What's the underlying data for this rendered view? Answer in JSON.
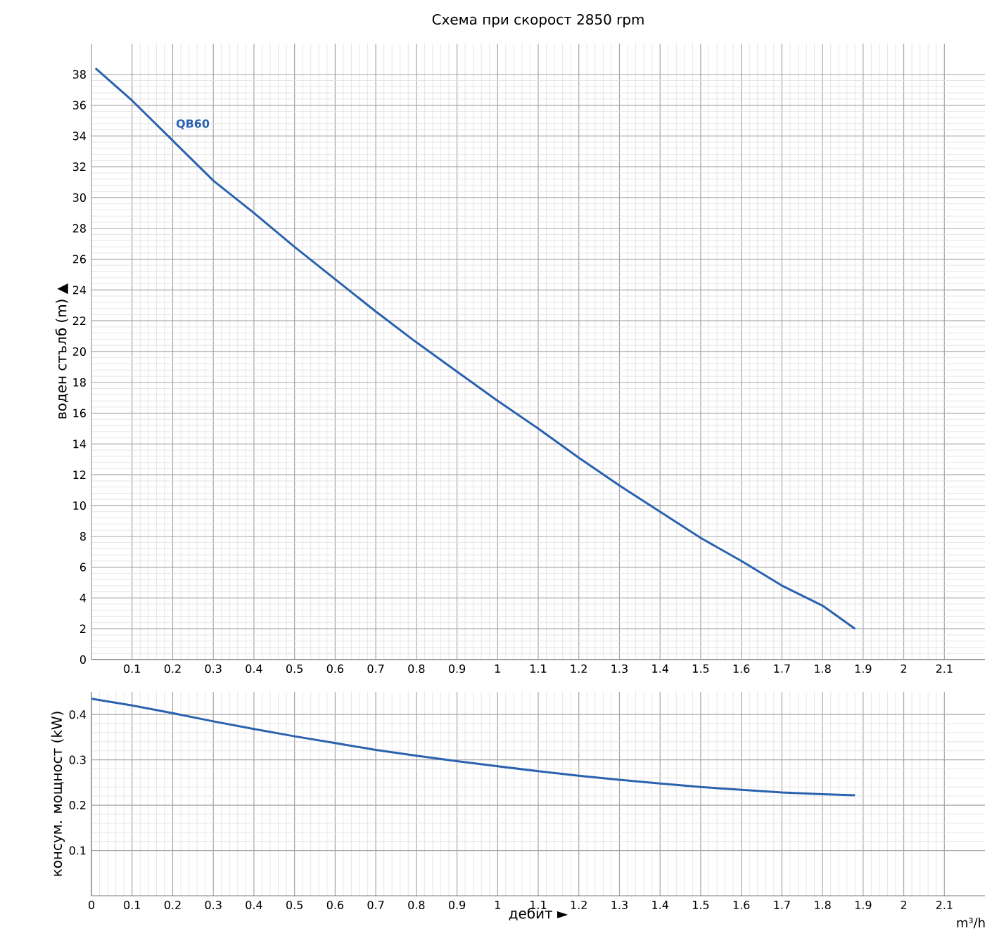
{
  "chart_data": [
    {
      "type": "line",
      "title": "Схема при скорост 2850 rpm",
      "ylabel": "воден стълб (m) ▲",
      "x": [
        0.01,
        0.1,
        0.2,
        0.3,
        0.4,
        0.5,
        0.6,
        0.7,
        0.8,
        0.9,
        1.0,
        1.1,
        1.2,
        1.3,
        1.4,
        1.5,
        1.6,
        1.7,
        1.8,
        1.88
      ],
      "series": [
        {
          "name": "QB60",
          "color": "#2a62b0",
          "values": [
            38.4,
            36.3,
            33.7,
            31.1,
            29.0,
            26.8,
            24.7,
            22.6,
            20.6,
            18.7,
            16.8,
            15.0,
            13.1,
            11.3,
            9.6,
            7.9,
            6.4,
            4.8,
            3.5,
            2.0
          ]
        }
      ],
      "xlim": [
        0,
        2.2
      ],
      "ylim": [
        0,
        40
      ],
      "xticks": [
        0.1,
        0.2,
        0.3,
        0.4,
        0.5,
        0.6,
        0.7,
        0.8,
        0.9,
        1,
        1.1,
        1.2,
        1.3,
        1.4,
        1.5,
        1.6,
        1.7,
        1.8,
        1.9,
        2,
        2.1
      ],
      "yticks": [
        0,
        2,
        4,
        6,
        8,
        10,
        12,
        14,
        16,
        18,
        20,
        22,
        24,
        26,
        28,
        30,
        32,
        34,
        36,
        38
      ],
      "grid": true
    },
    {
      "type": "line",
      "xlabel": "дебит ►",
      "ylabel": "консум. мощност (kW)",
      "annotations": [
        "m³/h"
      ],
      "x": [
        0,
        0.1,
        0.2,
        0.3,
        0.4,
        0.5,
        0.6,
        0.7,
        0.8,
        0.9,
        1.0,
        1.1,
        1.2,
        1.3,
        1.4,
        1.5,
        1.6,
        1.7,
        1.8,
        1.88
      ],
      "series": [
        {
          "color": "#2a62b0",
          "values": [
            0.435,
            0.42,
            0.403,
            0.385,
            0.368,
            0.352,
            0.337,
            0.322,
            0.309,
            0.297,
            0.286,
            0.275,
            0.265,
            0.256,
            0.248,
            0.24,
            0.234,
            0.228,
            0.224,
            0.222
          ]
        }
      ],
      "xlim": [
        0,
        2.2
      ],
      "ylim": [
        0,
        0.45
      ],
      "xticks": [
        0,
        0.1,
        0.2,
        0.3,
        0.4,
        0.5,
        0.6,
        0.7,
        0.8,
        0.9,
        1,
        1.1,
        1.2,
        1.3,
        1.4,
        1.5,
        1.6,
        1.7,
        1.8,
        1.9,
        2,
        2.1
      ],
      "yticks": [
        0.1,
        0.2,
        0.3,
        0.4
      ],
      "grid": true
    }
  ]
}
